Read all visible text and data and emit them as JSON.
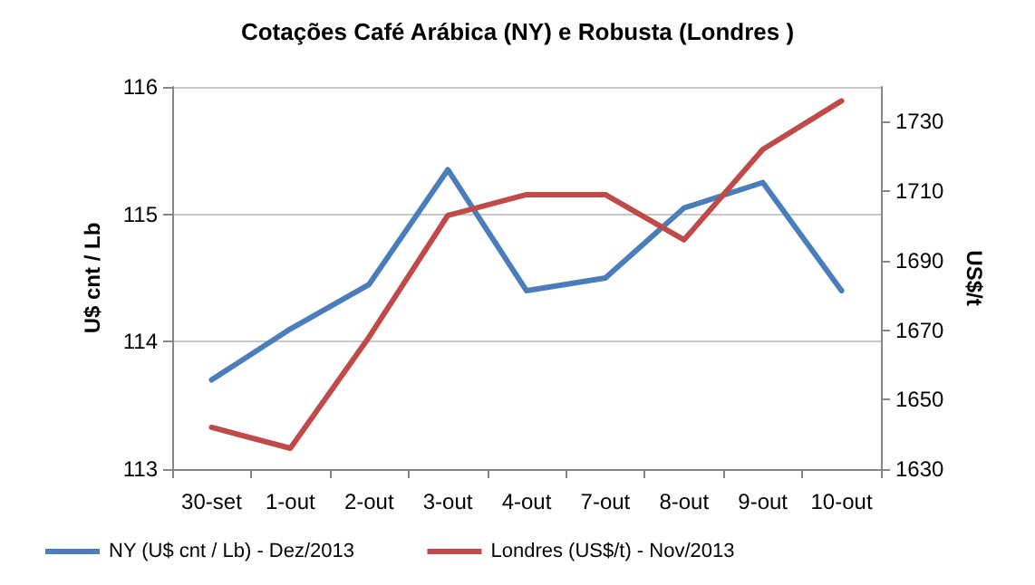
{
  "chart_data": {
    "type": "line",
    "title": "Cotações Café Arábica (NY) e Robusta (Londres )",
    "categories": [
      "30-set",
      "1-out",
      "2-out",
      "3-out",
      "4-out",
      "7-out",
      "8-out",
      "9-out",
      "10-out"
    ],
    "series": [
      {
        "name": "NY (U$ cnt / Lb) - Dez/2013",
        "color": "#4a7ebb",
        "values": [
          113.7,
          114.1,
          114.45,
          115.35,
          114.4,
          114.5,
          115.05,
          115.25,
          114.4
        ]
      },
      {
        "name": "Londres (US$/t) - Nov/2013",
        "color": "#be4b48",
        "axis": "y2",
        "values": [
          1642,
          1636,
          1668,
          1703,
          1709,
          1709,
          1696,
          1722,
          1736
        ]
      }
    ],
    "ylabel": "U$ cnt / Lb",
    "y2label": "US$/t",
    "ylim": [
      113,
      116
    ],
    "yticks": [
      113,
      114,
      115,
      116
    ],
    "y2lim": [
      1630,
      1740
    ],
    "y2ticks": [
      1630,
      1650,
      1670,
      1690,
      1710,
      1730
    ],
    "grid": "y",
    "legend": "bottom left",
    "marker": "none",
    "line_style": "solid"
  }
}
